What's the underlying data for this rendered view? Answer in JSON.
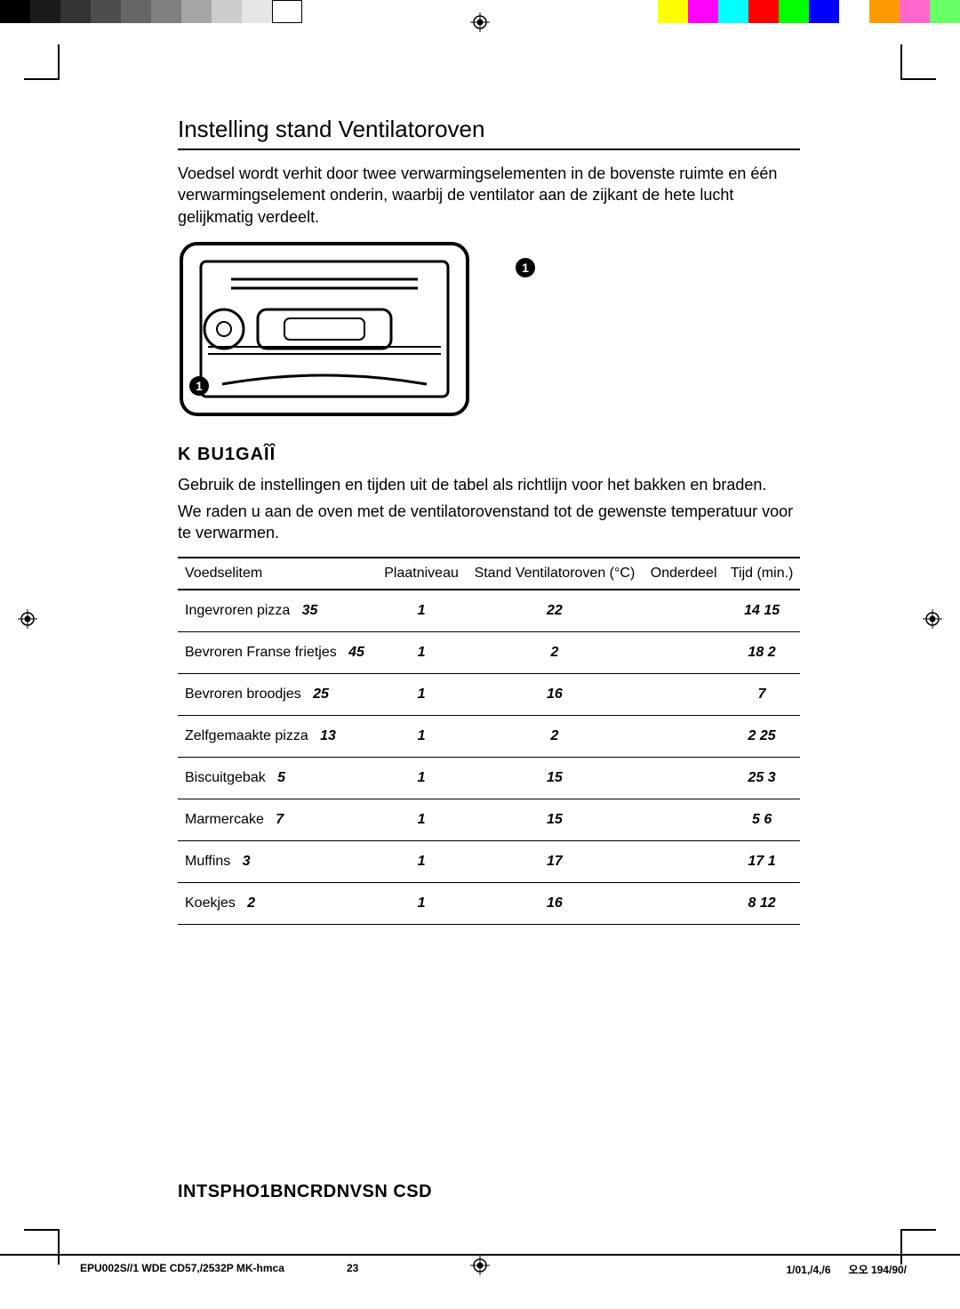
{
  "colorbar": {
    "grays": [
      "#000000",
      "#1a1a1a",
      "#333333",
      "#4d4d4d",
      "#666666",
      "#808080",
      "#a6a6a6",
      "#cccccc",
      "#e6e6e6",
      "#ffffff"
    ],
    "colors": [
      "#ffff00",
      "#ff00ff",
      "#00ffff",
      "#ff0000",
      "#00ff00",
      "#0000ff",
      "#ffffff",
      "#ff9900",
      "#ff66cc",
      "#66ff66"
    ]
  },
  "section_title": "Instelling stand Ventilatoroven",
  "intro": "Voedsel wordt verhit door twee verwarmingselementen in de bovenste ruimte en één verwarmingselement onderin, waarbij de ventilator aan de zijkant de hete lucht gelijkmatig verdeelt.",
  "bullet_label": "1",
  "sub_title": "K  BU1GAȊȊ",
  "para1": "Gebruik de instellingen en tijden uit de tabel als richtlijn voor het bakken en braden.",
  "para2": "We raden u aan de oven met de ventilatorovenstand tot de gewenste temperatuur voor te verwarmen.",
  "table": {
    "headers": {
      "c1": "Voedselitem",
      "c2": "Plaatniveau",
      "c3": "Stand Ventilatoroven (°C)",
      "c4": "Onderdeel",
      "c5": "Tijd (min.)"
    },
    "rows": [
      {
        "item_a": "Ingevroren pizza",
        "item_b": "35",
        "level": "1",
        "temp": "22",
        "part": "",
        "time": "14   15"
      },
      {
        "item_a": "Bevroren Franse frietjes",
        "item_b": "45",
        "level": "1",
        "temp": "2",
        "part": "",
        "time": "18   2"
      },
      {
        "item_a": "Bevroren broodjes",
        "item_b": "25",
        "level": "1",
        "temp": "16",
        "part": "",
        "time": "7"
      },
      {
        "item_a": "Zelfgemaakte pizza",
        "item_b": "13",
        "level": "1",
        "temp": "2",
        "part": "",
        "time": "2      25"
      },
      {
        "item_a": "Biscuitgebak",
        "item_b": "5",
        "level": "1",
        "temp": "15",
        "part": "",
        "time": "25   3"
      },
      {
        "item_a": "Marmercake",
        "item_b": "7",
        "level": "1",
        "temp": "15",
        "part": "",
        "time": "5      6"
      },
      {
        "item_a": "Muffins",
        "item_b": "3",
        "level": "1",
        "temp": "17",
        "part": "",
        "time": "17   1"
      },
      {
        "item_a": "Koekjes",
        "item_b": "2",
        "level": "1",
        "temp": "16",
        "part": "",
        "time": "8   12"
      }
    ],
    "header_border": "#000000",
    "row_border": "#000000"
  },
  "footer_title": "INTSPHO1BNCRDNVSN CSD",
  "footer_left": "EPU002S//1   WDE   CD57,/2532P   MK-hmca",
  "footer_mid": "23",
  "footer_right_a": "1/01,/4,/6",
  "footer_right_b": "오오   194/90/"
}
